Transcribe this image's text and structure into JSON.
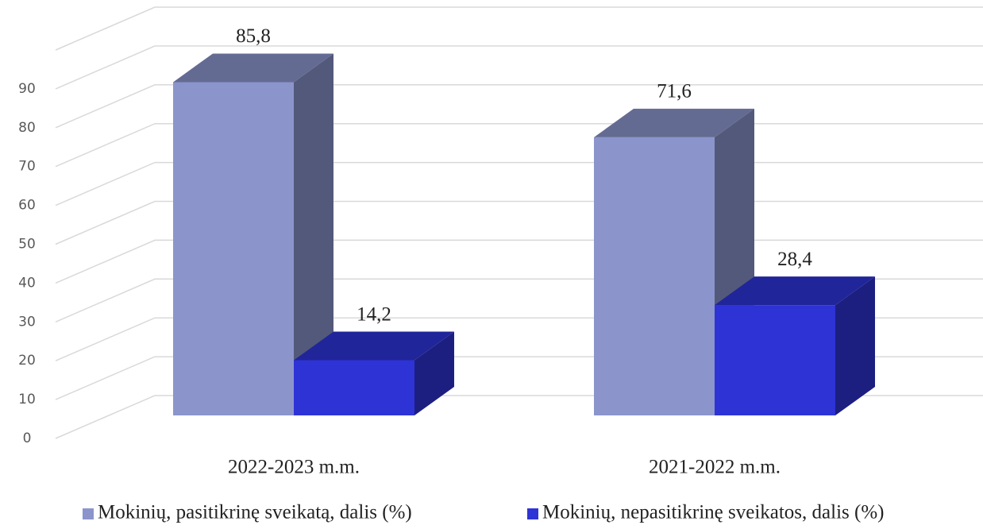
{
  "chart_data": {
    "type": "bar3d",
    "categories": [
      "2022-2023 m.m.",
      "2021-2022 m.m."
    ],
    "series": [
      {
        "name": "Mokinių, pasitikrinę sveikatą, dalis (%)",
        "color": "#8b95cc",
        "values": [
          85.8,
          71.6
        ],
        "value_labels": [
          "85,8",
          "71,6"
        ]
      },
      {
        "name": "Mokinių, nepasitikrinę sveikatos, dalis (%)",
        "color": "#2e33d6",
        "values": [
          14.2,
          28.4
        ],
        "value_labels": [
          "14,2",
          "28,4"
        ]
      }
    ],
    "ylim": [
      0,
      100
    ],
    "yticks": [
      0,
      10,
      20,
      30,
      40,
      50,
      60,
      70,
      80,
      90
    ],
    "grid": true
  }
}
